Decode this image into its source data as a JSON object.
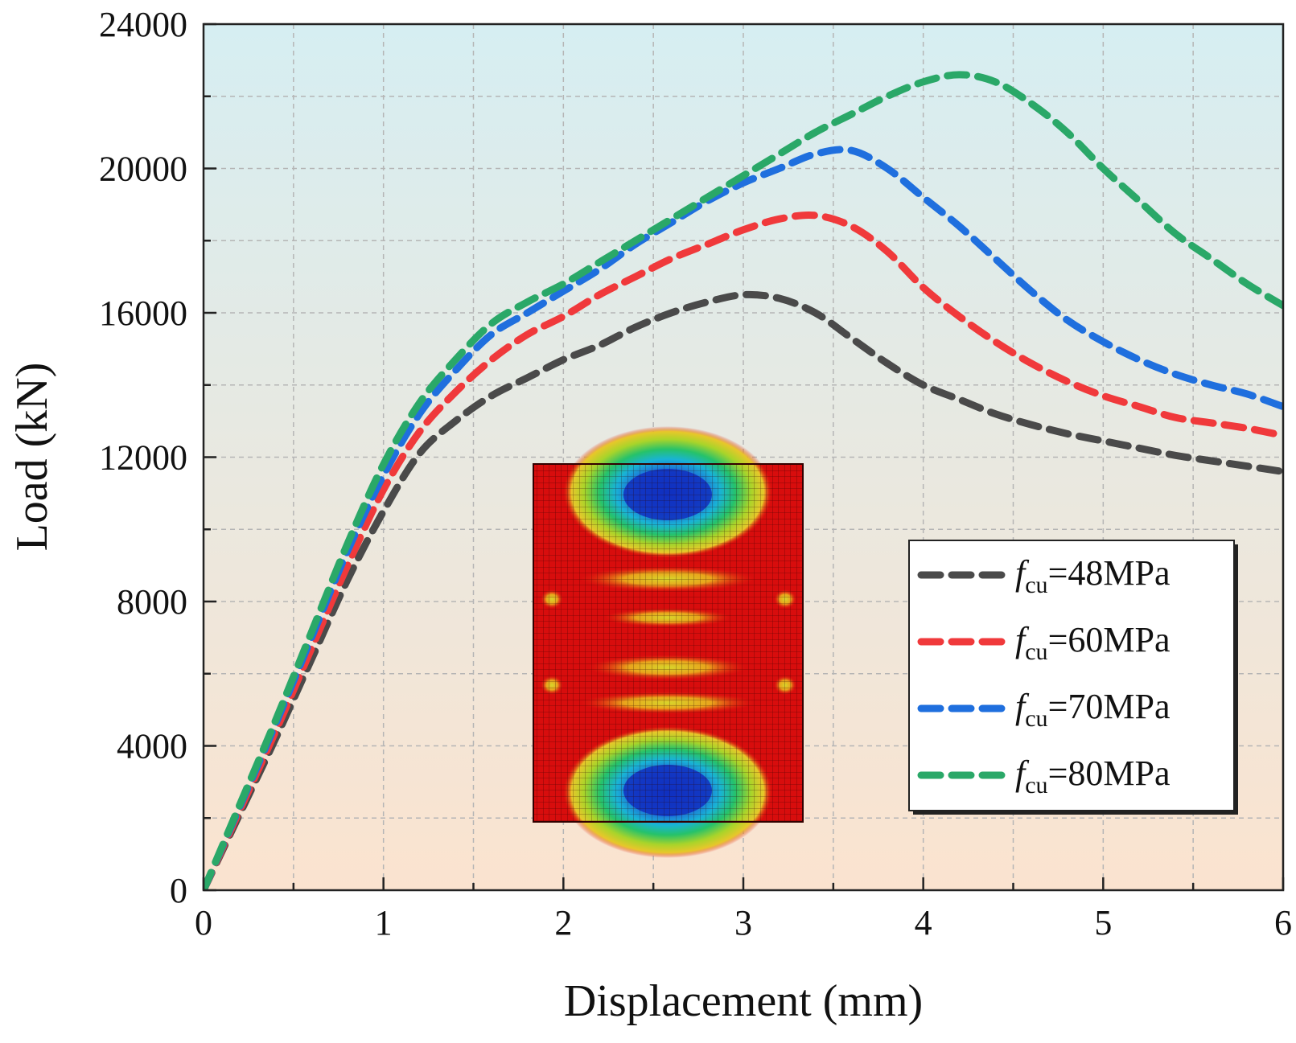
{
  "chart_data": {
    "type": "line",
    "xlabel": "Displacement (mm)",
    "ylabel": "Load (kN)",
    "xlim": [
      0,
      6
    ],
    "ylim": [
      0,
      24000
    ],
    "x_ticks": [
      "0",
      "1",
      "2",
      "3",
      "4",
      "5",
      "6"
    ],
    "y_ticks": [
      "0",
      "4000",
      "8000",
      "12000",
      "16000",
      "20000",
      "24000"
    ],
    "grid": true,
    "background": {
      "top_color": "#d6eef2",
      "bottom_color": "#fbe3cf"
    },
    "legend_position": "right",
    "series": [
      {
        "name_prefix": "f",
        "name_sub": "cu",
        "name_value": "=48MPa",
        "color": "#4a4a4a",
        "points": [
          [
            0,
            0
          ],
          [
            0.2,
            2100
          ],
          [
            0.4,
            4200
          ],
          [
            0.6,
            6400
          ],
          [
            0.8,
            8600
          ],
          [
            1.0,
            10500
          ],
          [
            1.2,
            12100
          ],
          [
            1.4,
            13000
          ],
          [
            1.6,
            13700
          ],
          [
            1.8,
            14200
          ],
          [
            2.0,
            14700
          ],
          [
            2.2,
            15100
          ],
          [
            2.4,
            15600
          ],
          [
            2.6,
            16000
          ],
          [
            2.8,
            16300
          ],
          [
            3.0,
            16500
          ],
          [
            3.2,
            16400
          ],
          [
            3.4,
            16000
          ],
          [
            3.6,
            15300
          ],
          [
            3.8,
            14600
          ],
          [
            4.0,
            14000
          ],
          [
            4.2,
            13600
          ],
          [
            4.4,
            13200
          ],
          [
            4.6,
            12900
          ],
          [
            4.8,
            12650
          ],
          [
            5.0,
            12450
          ],
          [
            5.2,
            12250
          ],
          [
            5.4,
            12050
          ],
          [
            5.6,
            11900
          ],
          [
            5.8,
            11750
          ],
          [
            6.0,
            11600
          ]
        ]
      },
      {
        "name_prefix": "f",
        "name_sub": "cu",
        "name_value": "=60MPa",
        "color": "#f0393b",
        "points": [
          [
            0,
            0
          ],
          [
            0.2,
            2200
          ],
          [
            0.4,
            4400
          ],
          [
            0.6,
            6700
          ],
          [
            0.8,
            9000
          ],
          [
            1.0,
            11100
          ],
          [
            1.2,
            12700
          ],
          [
            1.4,
            13800
          ],
          [
            1.6,
            14700
          ],
          [
            1.8,
            15400
          ],
          [
            2.0,
            15900
          ],
          [
            2.2,
            16500
          ],
          [
            2.4,
            17000
          ],
          [
            2.6,
            17500
          ],
          [
            2.8,
            17900
          ],
          [
            3.0,
            18300
          ],
          [
            3.2,
            18600
          ],
          [
            3.4,
            18700
          ],
          [
            3.6,
            18400
          ],
          [
            3.8,
            17700
          ],
          [
            4.0,
            16700
          ],
          [
            4.2,
            15900
          ],
          [
            4.4,
            15200
          ],
          [
            4.6,
            14600
          ],
          [
            4.8,
            14100
          ],
          [
            5.0,
            13700
          ],
          [
            5.2,
            13400
          ],
          [
            5.4,
            13100
          ],
          [
            5.6,
            12950
          ],
          [
            5.8,
            12800
          ],
          [
            6.0,
            12600
          ]
        ]
      },
      {
        "name_prefix": "f",
        "name_sub": "cu",
        "name_value": "=70MPa",
        "color": "#1f6fde",
        "points": [
          [
            0,
            0
          ],
          [
            0.2,
            2300
          ],
          [
            0.4,
            4600
          ],
          [
            0.6,
            7000
          ],
          [
            0.8,
            9400
          ],
          [
            1.0,
            11500
          ],
          [
            1.2,
            13200
          ],
          [
            1.4,
            14400
          ],
          [
            1.6,
            15400
          ],
          [
            1.8,
            16000
          ],
          [
            2.0,
            16600
          ],
          [
            2.2,
            17200
          ],
          [
            2.4,
            17900
          ],
          [
            2.6,
            18500
          ],
          [
            2.8,
            19100
          ],
          [
            3.0,
            19600
          ],
          [
            3.2,
            20000
          ],
          [
            3.4,
            20400
          ],
          [
            3.6,
            20500
          ],
          [
            3.8,
            20000
          ],
          [
            4.0,
            19200
          ],
          [
            4.2,
            18400
          ],
          [
            4.4,
            17500
          ],
          [
            4.6,
            16600
          ],
          [
            4.8,
            15800
          ],
          [
            5.0,
            15200
          ],
          [
            5.2,
            14700
          ],
          [
            5.4,
            14300
          ],
          [
            5.6,
            14000
          ],
          [
            5.8,
            13750
          ],
          [
            6.0,
            13400
          ]
        ]
      },
      {
        "name_prefix": "f",
        "name_sub": "cu",
        "name_value": "=80MPa",
        "color": "#2aa868",
        "points": [
          [
            0,
            0
          ],
          [
            0.2,
            2350
          ],
          [
            0.4,
            4700
          ],
          [
            0.6,
            7150
          ],
          [
            0.8,
            9600
          ],
          [
            1.0,
            11800
          ],
          [
            1.2,
            13500
          ],
          [
            1.4,
            14700
          ],
          [
            1.6,
            15700
          ],
          [
            1.8,
            16300
          ],
          [
            2.0,
            16800
          ],
          [
            2.2,
            17400
          ],
          [
            2.4,
            18000
          ],
          [
            2.6,
            18600
          ],
          [
            2.8,
            19200
          ],
          [
            3.0,
            19800
          ],
          [
            3.2,
            20400
          ],
          [
            3.4,
            21000
          ],
          [
            3.6,
            21500
          ],
          [
            3.8,
            22000
          ],
          [
            4.0,
            22400
          ],
          [
            4.2,
            22600
          ],
          [
            4.4,
            22400
          ],
          [
            4.6,
            21800
          ],
          [
            4.8,
            21000
          ],
          [
            5.0,
            20000
          ],
          [
            5.2,
            19100
          ],
          [
            5.4,
            18200
          ],
          [
            5.6,
            17500
          ],
          [
            5.8,
            16800
          ],
          [
            6.0,
            16200
          ]
        ]
      }
    ],
    "inset": {
      "description_icon": "fe-stress-contour-mesh-icon"
    }
  }
}
